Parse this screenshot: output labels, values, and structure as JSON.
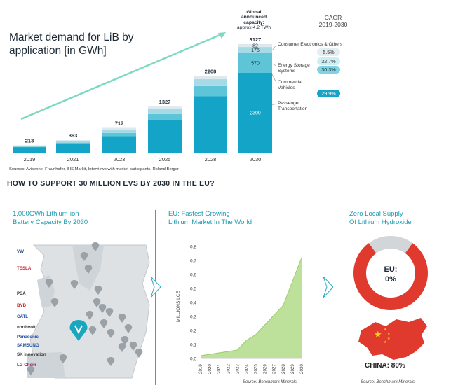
{
  "top": {
    "title_line1": "Market demand for LiB by",
    "title_line2": "application [in GWh]",
    "global_note_bold": "Global announced capacity:",
    "global_note_value": "approx 4.2 TWh",
    "cagr_title": "CAGR",
    "cagr_period": "2019-2030",
    "source": "Sources: Avicenne, Fraunhofer, IHS Markit, Interviews with market participants, Roland Berger",
    "segments": [
      "Consumer Electronics & Others",
      "Energy Storage Systems",
      "Commercial Vehicles",
      "Passenger Transportation"
    ],
    "cagr_values": [
      "5.5%",
      "32.7%",
      "30.3%",
      "29.9%"
    ],
    "colors": {
      "consumer": "#dde9ef",
      "ess": "#a6dbe6",
      "commercial": "#5ec5d8",
      "passenger": "#14a4c7",
      "arrow": "#7ed9c2"
    }
  },
  "chart_data": [
    {
      "type": "bar",
      "title": "Market demand for LiB by application [in GWh]",
      "categories": [
        "2019",
        "2021",
        "2023",
        "2025",
        "2028",
        "2030"
      ],
      "totals": [
        213,
        363,
        717,
        1327,
        2208,
        3127
      ],
      "series": [
        {
          "name": "Passenger Transportation",
          "values": [
            160,
            260,
            480,
            930,
            1630,
            2300
          ]
        },
        {
          "name": "Commercial Vehicles",
          "values": [
            10,
            30,
            90,
            180,
            290,
            570
          ]
        },
        {
          "name": "Energy Storage Systems",
          "values": [
            13,
            33,
            87,
            147,
            198,
            175
          ]
        },
        {
          "name": "Consumer Electronics & Others",
          "values": [
            30,
            40,
            60,
            70,
            90,
            82
          ]
        }
      ],
      "data_labels": {
        "passenger_2030": "2300",
        "commercial_2030": "570",
        "ess_2030": "175",
        "consumer_2030": "82"
      }
    },
    {
      "type": "area",
      "title": "EU: Fastest Growing Lithium Market In The World",
      "ylabel": "MILLIONS LCE",
      "x": [
        "2019",
        "2020",
        "2021",
        "2022",
        "2023",
        "2024",
        "2025",
        "2026",
        "2027",
        "2028",
        "2029",
        "2030"
      ],
      "values": [
        0.02,
        0.03,
        0.04,
        0.05,
        0.06,
        0.13,
        0.17,
        0.24,
        0.31,
        0.38,
        0.55,
        0.72
      ],
      "yticks": [
        "0.0",
        "0.1",
        "0.2",
        "0.3",
        "0.4",
        "0.5",
        "0.6",
        "0.7",
        "0.8"
      ],
      "ylim": [
        0,
        0.8
      ],
      "source": "Source: Benchmark Minerals"
    },
    {
      "type": "pie",
      "title": "Zero Local Supply Of Lithium Hydroxide",
      "slices": [
        {
          "name": "EU",
          "value": 0
        },
        {
          "name": "China",
          "value": 80
        },
        {
          "name": "Other",
          "value": 20
        }
      ],
      "center_label_line1": "EU:",
      "center_label_line2": "0%",
      "china_label": "CHINA: 80%",
      "source": "Source: Benchmark Minerals"
    }
  ],
  "section_title": "HOW TO SUPPORT 30 MILLION EVS BY 2030 IN THE EU?",
  "panel1": {
    "title_line1": "1,000GWh Lithium-ion",
    "title_line2": "Battery Capacity By 2030",
    "logos": [
      "VW",
      "TESLA",
      "",
      "PSA",
      "BYD",
      "CATL",
      "northvolt",
      "Panasonic",
      "SAMSUNG",
      "SK innovation",
      "LG Chem"
    ]
  },
  "panel2": {
    "title_line1": "EU: Fastest Growing",
    "title_line2": "Lithium  Market In The World"
  },
  "panel3": {
    "title_line1": "Zero Local Supply",
    "title_line2": "Of Lithium Hydroxide"
  }
}
